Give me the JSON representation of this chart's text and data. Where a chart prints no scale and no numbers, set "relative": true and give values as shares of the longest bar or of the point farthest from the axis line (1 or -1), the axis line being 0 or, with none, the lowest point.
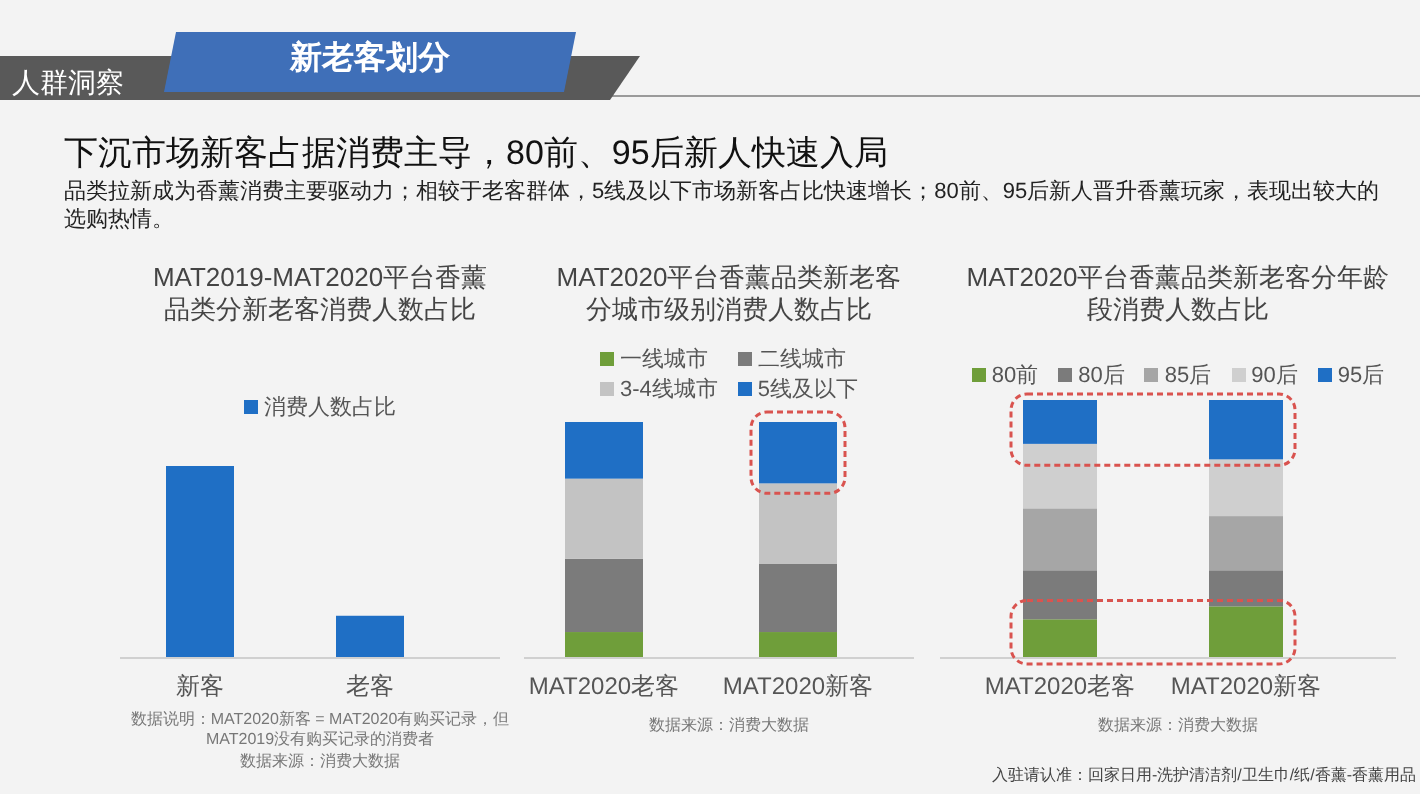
{
  "chart_data": [
    {
      "type": "other",
      "title": "下沉市场新客占据消费主导，80前、95后新人快速入局",
      "subtitle": "品类拉新成为香薰消费主要驱动力；相较于老客群体，5线及以下市场新客占比快速增长；80前、95后新人晋升香薰玩家，表现出较大的选购热情。",
      "annotations": [
        "人群洞察",
        "新老客划分"
      ]
    },
    {
      "type": "bar",
      "title": "MAT2019-MAT2020平台香薰品类分新老客消费人数占比",
      "categories": [
        "新客",
        "老客"
      ],
      "relative": true,
      "legend": "top",
      "series": [
        {
          "name": "消费人数占比",
          "color": "#1f6fc5",
          "values": [
            1,
            0.22
          ]
        }
      ],
      "annotations": [
        "数据说明：MAT2020新客 = MAT2020有购买记录，但MAT2019没有购买记录的消费者",
        "数据来源：消费大数据"
      ]
    },
    {
      "type": "bar",
      "title": "MAT2020平台香薰品类新老客分城市级别消费人数占比",
      "categories": [
        "MAT2020老客",
        "MAT2020新客"
      ],
      "relative": true,
      "stacked": true,
      "legend": "top",
      "series": [
        {
          "name": "一线城市",
          "color": "#6f9e3a",
          "values": [
            0.11,
            0.11
          ]
        },
        {
          "name": "二线城市",
          "color": "#7b7b7b",
          "values": [
            0.31,
            0.29
          ]
        },
        {
          "name": "3-4线城市",
          "color": "#c3c3c3",
          "values": [
            0.34,
            0.34
          ]
        },
        {
          "name": "5线及以下",
          "color": "#1f6fc5",
          "values": [
            0.24,
            0.26
          ]
        }
      ],
      "annotations": [
        "数据来源：消费大数据"
      ]
    },
    {
      "type": "bar",
      "title": "MAT2020平台香薰品类新老客分年龄段消费人数占比",
      "categories": [
        "MAT2020老客",
        "MAT2020新客"
      ],
      "relative": true,
      "stacked": true,
      "legend": "top",
      "series": [
        {
          "name": "80前",
          "color": "#6f9e3a",
          "values": [
            0.15,
            0.2
          ]
        },
        {
          "name": "80后",
          "color": "#7b7b7b",
          "values": [
            0.19,
            0.14
          ]
        },
        {
          "name": "85后",
          "color": "#a6a6a6",
          "values": [
            0.24,
            0.21
          ]
        },
        {
          "name": "90后",
          "color": "#cfcfcf",
          "values": [
            0.25,
            0.22
          ]
        },
        {
          "name": "95后",
          "color": "#1f6fc5",
          "values": [
            0.17,
            0.23
          ]
        }
      ],
      "annotations": [
        "数据来源：消费大数据",
        "入驻请认准：回家日用-洗护清洁剂/卫生巾/纸/香薰-香薰用品"
      ]
    }
  ]
}
